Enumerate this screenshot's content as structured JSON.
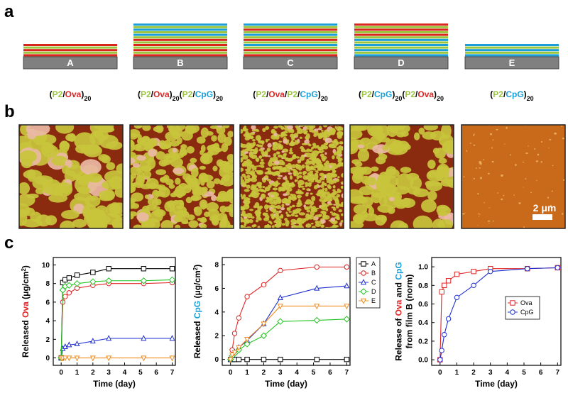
{
  "panel_labels": [
    "a",
    "b",
    "c"
  ],
  "films": [
    {
      "name": "A",
      "formula": [
        {
          "text": "("
        },
        {
          "text": "P2",
          "color": "#9bc53d"
        },
        {
          "text": "/"
        },
        {
          "text": "Ova",
          "color": "#e02424"
        },
        {
          "text": ")"
        },
        {
          "text": "20",
          "sub": true
        }
      ]
    },
    {
      "name": "B",
      "formula": [
        {
          "text": "("
        },
        {
          "text": "P2",
          "color": "#9bc53d"
        },
        {
          "text": "/"
        },
        {
          "text": "Ova",
          "color": "#e02424"
        },
        {
          "text": ")"
        },
        {
          "text": "20",
          "sub": true
        },
        {
          "text": "("
        },
        {
          "text": "P2",
          "color": "#9bc53d"
        },
        {
          "text": "/"
        },
        {
          "text": "CpG",
          "color": "#1aa0d8"
        },
        {
          "text": ")"
        },
        {
          "text": "20",
          "sub": true
        }
      ]
    },
    {
      "name": "C",
      "formula": [
        {
          "text": "("
        },
        {
          "text": "P2",
          "color": "#9bc53d"
        },
        {
          "text": "/"
        },
        {
          "text": "Ova",
          "color": "#e02424"
        },
        {
          "text": "/"
        },
        {
          "text": "P2",
          "color": "#9bc53d"
        },
        {
          "text": "/"
        },
        {
          "text": "CpG",
          "color": "#1aa0d8"
        },
        {
          "text": ")"
        },
        {
          "text": "20",
          "sub": true
        }
      ]
    },
    {
      "name": "D",
      "formula": [
        {
          "text": "("
        },
        {
          "text": "P2",
          "color": "#9bc53d"
        },
        {
          "text": "/"
        },
        {
          "text": "CpG",
          "color": "#1aa0d8"
        },
        {
          "text": ")"
        },
        {
          "text": "20",
          "sub": true
        },
        {
          "text": "("
        },
        {
          "text": "P2",
          "color": "#9bc53d"
        },
        {
          "text": "/"
        },
        {
          "text": "Ova",
          "color": "#e02424"
        },
        {
          "text": ")"
        },
        {
          "text": "20",
          "sub": true
        }
      ]
    },
    {
      "name": "E",
      "formula": [
        {
          "text": "("
        },
        {
          "text": "P2",
          "color": "#9bc53d"
        },
        {
          "text": "/"
        },
        {
          "text": "CpG",
          "color": "#1aa0d8"
        },
        {
          "text": ")"
        },
        {
          "text": "20",
          "sub": true
        }
      ]
    }
  ],
  "afm": {
    "scale_bar": "2 μm"
  },
  "chart_data": [
    {
      "type": "line",
      "ylabel": [
        [
          {
            "text": "Released "
          },
          {
            "text": "Ova",
            "color": "#e02424"
          },
          {
            "text": " (μg/cm"
          },
          {
            "text": "2",
            "sup": true
          },
          {
            "text": ")"
          }
        ]
      ],
      "xlabel": "Time (day)",
      "x": [
        0,
        0.1,
        0.25,
        0.5,
        1,
        2,
        3,
        5.2,
        7
      ],
      "xlim": [
        -0.5,
        7.2
      ],
      "xticks": [
        0,
        1,
        2,
        3,
        4,
        5,
        6,
        7
      ],
      "ylim": [
        -0.8,
        10.8
      ],
      "yticks": [
        0,
        2,
        4,
        6,
        8,
        10
      ],
      "series": [
        {
          "color": "#000000",
          "marker": "square",
          "values": [
            0,
            8.1,
            8.4,
            8.6,
            8.9,
            9.2,
            9.6,
            9.6,
            9.6
          ]
        },
        {
          "color": "#e02424",
          "marker": "circle",
          "values": [
            0,
            6.0,
            6.6,
            7.0,
            7.5,
            7.8,
            8.0,
            8.0,
            8.1
          ]
        },
        {
          "color": "#1f2fd0",
          "marker": "triangle-up",
          "values": [
            0,
            1.0,
            1.2,
            1.4,
            1.5,
            1.8,
            2.1,
            2.1,
            2.1
          ]
        },
        {
          "color": "#22c422",
          "marker": "diamond",
          "values": [
            0,
            7.3,
            7.7,
            7.8,
            8.0,
            8.2,
            8.3,
            8.3,
            8.4
          ]
        },
        {
          "color": "#f08c1e",
          "marker": "triangle-down",
          "values": [
            0,
            0,
            0,
            0,
            0,
            0,
            0,
            0,
            0
          ]
        }
      ]
    },
    {
      "type": "line",
      "ylabel": [
        [
          {
            "text": "Released "
          },
          {
            "text": "CpG",
            "color": "#1aa0d8"
          },
          {
            "text": " (μg/cm"
          },
          {
            "text": "2",
            "sup": true
          },
          {
            "text": ")"
          }
        ]
      ],
      "xlabel": "Time (day)",
      "x": [
        0,
        0.1,
        0.25,
        0.5,
        1,
        2,
        3,
        5.2,
        7
      ],
      "xlim": [
        -0.5,
        7.2
      ],
      "xticks": [
        0,
        1,
        2,
        3,
        4,
        5,
        6,
        7
      ],
      "ylim": [
        -0.5,
        8.6
      ],
      "yticks": [
        0,
        2,
        4,
        6,
        8
      ],
      "legend": "outside-right",
      "series": [
        {
          "name": "A",
          "color": "#000000",
          "marker": "square",
          "values": [
            0,
            0,
            0,
            0,
            0,
            0,
            0,
            0,
            0
          ]
        },
        {
          "name": "B",
          "color": "#e02424",
          "marker": "circle",
          "values": [
            0,
            0.8,
            2.2,
            3.5,
            5.3,
            6.3,
            7.5,
            7.8,
            7.8
          ]
        },
        {
          "name": "C",
          "color": "#1f2fd0",
          "marker": "triangle-up",
          "values": [
            0,
            0.3,
            0.6,
            1.0,
            1.6,
            3.0,
            5.2,
            6.0,
            6.2
          ]
        },
        {
          "name": "D",
          "color": "#22c422",
          "marker": "diamond",
          "values": [
            0,
            0.3,
            0.5,
            0.8,
            1.3,
            2.0,
            3.2,
            3.3,
            3.4
          ]
        },
        {
          "name": "E",
          "color": "#f08c1e",
          "marker": "triangle-down",
          "values": [
            0,
            0.4,
            0.6,
            1.0,
            1.7,
            3.0,
            4.5,
            4.5,
            4.5
          ]
        }
      ]
    },
    {
      "type": "line",
      "ylabel": [
        [
          {
            "text": "Release of "
          },
          {
            "text": "Ova",
            "color": "#e02424"
          },
          {
            "text": " and "
          },
          {
            "text": "CpG",
            "color": "#1aa0d8"
          }
        ],
        [
          {
            "text": "from film B (norm)"
          }
        ]
      ],
      "xlabel": "Time (day)",
      "x": [
        0,
        0.1,
        0.25,
        0.5,
        1,
        2,
        3,
        5.2,
        7
      ],
      "xlim": [
        -0.5,
        7.2
      ],
      "xticks": [
        0,
        1,
        2,
        3,
        4,
        5,
        6,
        7
      ],
      "ylim": [
        -0.06,
        1.1
      ],
      "yticks": [
        {
          "value": 0,
          "label": "0.0"
        },
        0.2,
        0.4,
        0.6,
        0.8,
        {
          "value": 1,
          "label": "1.0"
        }
      ],
      "legend": "center-right",
      "series": [
        {
          "name": "Ova",
          "color": "#e02424",
          "marker": "square",
          "values": [
            0,
            0.73,
            0.8,
            0.85,
            0.92,
            0.95,
            0.98,
            0.98,
            0.99
          ]
        },
        {
          "name": "CpG",
          "color": "#1f2fd0",
          "marker": "circle",
          "values": [
            0,
            0.1,
            0.27,
            0.44,
            0.67,
            0.8,
            0.95,
            0.98,
            0.99
          ]
        }
      ]
    }
  ]
}
